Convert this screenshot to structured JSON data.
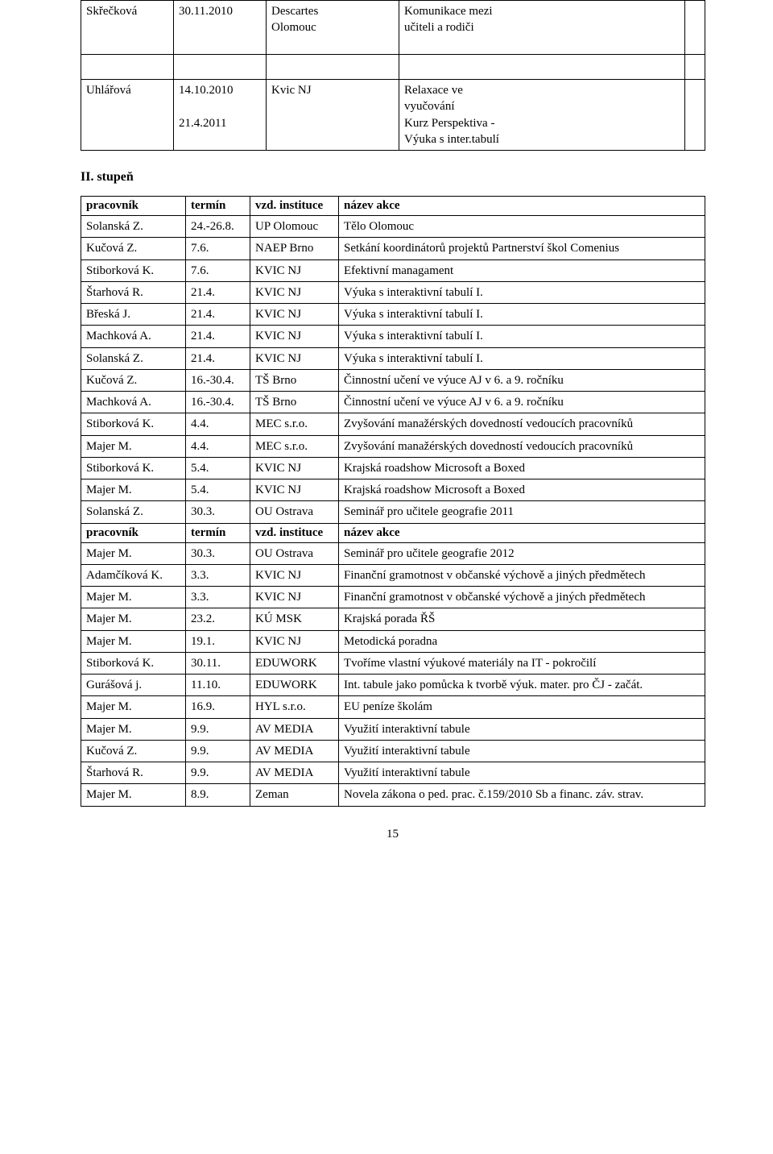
{
  "top_table": {
    "row1": {
      "c1": "Skřečková",
      "c2": "30.11.2010",
      "c3": "Descartes\nOlomouc",
      "c4": "Komunikace mezi\nučiteli a rodiči",
      "c5": ""
    },
    "row2": {
      "c1": "Uhlářová",
      "c2": "14.10.2010\n\n21.4.2011",
      "c3": "Kvic NJ",
      "c4": "Relaxace ve\nvyučování\nKurz Perspektiva -\nVýuka s inter.tabulí",
      "c5": ""
    }
  },
  "heading_stupen": "II. stupeň",
  "headers1": {
    "c1": "pracovník",
    "c2": "termín",
    "c3": "vzd. instituce",
    "c4": "název akce"
  },
  "headers2": {
    "c1": "pracovník",
    "c2": "termín",
    "c3": "vzd. instituce",
    "c4": "název akce"
  },
  "rows1": [
    {
      "c1": "Solanská Z.",
      "c2": " 24.-26.8.",
      "c3": "UP Olomouc",
      "c4": "Tělo Olomouc"
    },
    {
      "c1": "Kučová Z.",
      "c2": "7.6.",
      "c3": "NAEP Brno",
      "c4": "Setkání koordinátorů projektů Partnerství škol Comenius"
    },
    {
      "c1": "Stiborková K.",
      "c2": "7.6.",
      "c3": "KVIC NJ",
      "c4": "Efektivní managament"
    },
    {
      "c1": "Štarhová R.",
      "c2": "21.4.",
      "c3": "KVIC NJ",
      "c4": "Výuka s interaktivní tabulí I."
    },
    {
      "c1": "Břeská J.",
      "c2": "21.4.",
      "c3": "KVIC NJ",
      "c4": "Výuka s interaktivní tabulí I."
    },
    {
      "c1": "Machková A.",
      "c2": "21.4.",
      "c3": "KVIC NJ",
      "c4": "Výuka s interaktivní tabulí I."
    },
    {
      "c1": "Solanská Z.",
      "c2": "21.4.",
      "c3": "KVIC NJ",
      "c4": "Výuka s interaktivní tabulí I."
    },
    {
      "c1": "Kučová Z.",
      "c2": "16.-30.4.",
      "c3": "TŠ Brno",
      "c4": "Činnostní učení ve výuce AJ v 6. a 9. ročníku"
    },
    {
      "c1": "Machková A.",
      "c2": "16.-30.4.",
      "c3": "TŠ Brno",
      "c4": "Činnostní učení ve výuce AJ v 6. a 9. ročníku"
    },
    {
      "c1": "Stiborková K.",
      "c2": "4.4.",
      "c3": "MEC s.r.o.",
      "c4": "Zvyšování manažérských dovedností vedoucích pracovníků"
    },
    {
      "c1": "Majer M.",
      "c2": "4.4.",
      "c3": "MEC s.r.o.",
      "c4": "Zvyšování manažérských dovedností vedoucích pracovníků"
    },
    {
      "c1": "Stiborková K.",
      "c2": "5.4.",
      "c3": "KVIC NJ",
      "c4": "Krajská roadshow Microsoft a Boxed"
    },
    {
      "c1": "Majer M.",
      "c2": "5.4.",
      "c3": "KVIC NJ",
      "c4": "Krajská roadshow Microsoft a Boxed"
    },
    {
      "c1": "Solanská Z.",
      "c2": "30.3.",
      "c3": "OU Ostrava",
      "c4": " Seminář pro učitele geografie 2011"
    }
  ],
  "rows2": [
    {
      "c1": "Majer M.",
      "c2": "30.3.",
      "c3": "OU Ostrava",
      "c4": " Seminář pro učitele geografie 2012"
    },
    {
      "c1": "Adamčíková K.",
      "c2": "3.3.",
      "c3": "KVIC NJ",
      "c4": "Finanční gramotnost v občanské výchově a jiných předmětech"
    },
    {
      "c1": "Majer M.",
      "c2": "3.3.",
      "c3": "KVIC NJ",
      "c4": "Finanční gramotnost v občanské výchově a jiných předmětech"
    },
    {
      "c1": "Majer M.",
      "c2": "23.2.",
      "c3": "KÚ MSK",
      "c4": "Krajská porada ŘŠ"
    },
    {
      "c1": "Majer M.",
      "c2": "19.1.",
      "c3": "KVIC NJ",
      "c4": "Metodická poradna"
    },
    {
      "c1": "Stiborková K.",
      "c2": "30.11.",
      "c3": "EDUWORK",
      "c4": "Tvoříme vlastní výukové materiály na IT - pokročilí"
    },
    {
      "c1": "Gurášová j.",
      "c2": "11.10.",
      "c3": "EDUWORK",
      "c4": "Int. tabule jako pomůcka k tvorbě  výuk. mater. pro ČJ - začát."
    },
    {
      "c1": "Majer M.",
      "c2": "16.9.",
      "c3": "HYL s.r.o.",
      "c4": "EU peníze školám"
    },
    {
      "c1": "Majer M.",
      "c2": "9.9.",
      "c3": "AV MEDIA",
      "c4": "Využití interaktivní tabule"
    },
    {
      "c1": "Kučová Z.",
      "c2": "9.9.",
      "c3": "AV MEDIA",
      "c4": "Využití interaktivní tabule"
    },
    {
      "c1": "Štarhová R.",
      "c2": "9.9.",
      "c3": "AV MEDIA",
      "c4": "Využití interaktivní tabule"
    },
    {
      "c1": "Majer M.",
      "c2": "8.9.",
      "c3": "Zeman",
      "c4": "Novela zákona o ped. prac. č.159/2010 Sb a financ. záv. strav."
    }
  ],
  "page_number": "15",
  "colors": {
    "background": "#ffffff",
    "text": "#000000",
    "border": "#000000"
  }
}
